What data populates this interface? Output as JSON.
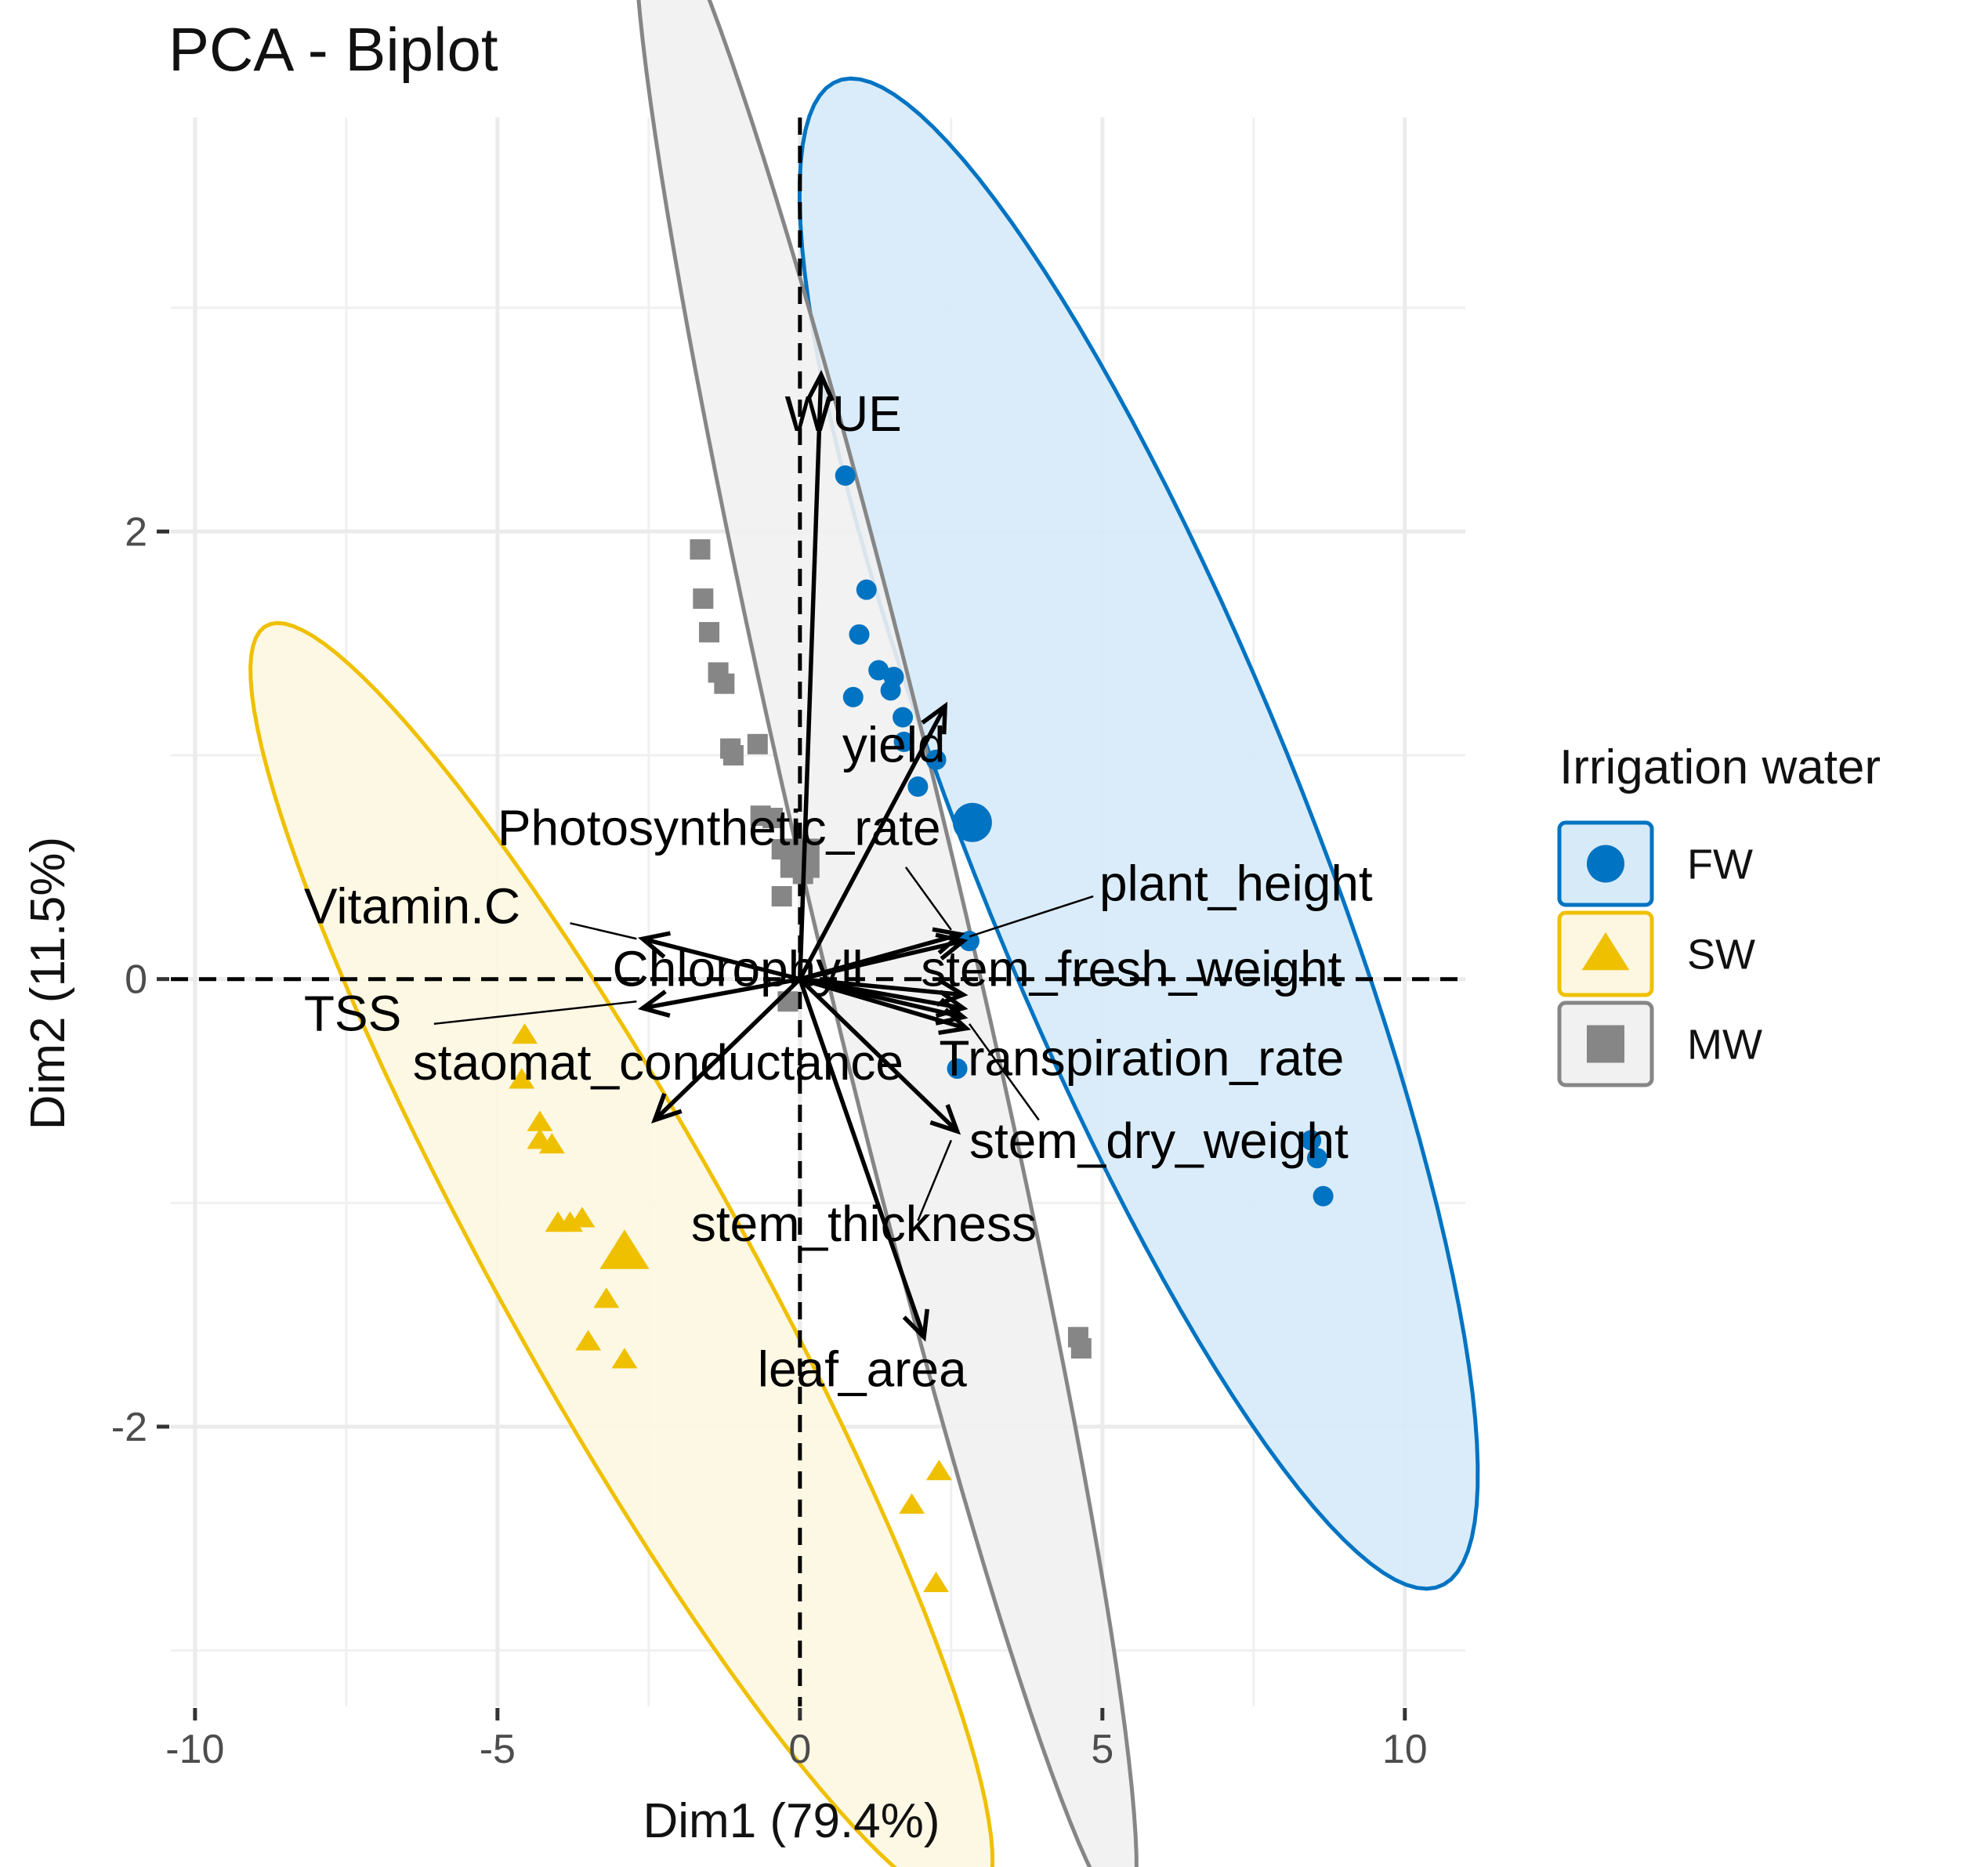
{
  "chart_data": {
    "type": "scatter",
    "title": "PCA - Biplot",
    "xlabel": "Dim1 (79.4%)",
    "ylabel": "Dim2 (11.5%)",
    "xlim": [
      -10.4,
      11.0
    ],
    "ylim": [
      -3.25,
      3.85
    ],
    "x_ticks": [
      -10,
      -5,
      0,
      5,
      10
    ],
    "x_tick_labels": [
      "-10",
      "-5",
      "0",
      "5",
      "10"
    ],
    "y_ticks": [
      -2,
      0,
      2
    ],
    "y_tick_labels": [
      "-2",
      "0",
      "2"
    ],
    "grid": true,
    "legend": {
      "title": "Irrigation water",
      "position": "right",
      "entries": [
        {
          "label": "FW",
          "color": "#0073C2",
          "shape": "circle"
        },
        {
          "label": "SW",
          "color": "#EFC000",
          "shape": "triangle"
        },
        {
          "label": "MW",
          "color": "#868686",
          "shape": "square"
        }
      ]
    },
    "series": [
      {
        "name": "FW",
        "color": "#0073C2",
        "fill": "#D6EAF8",
        "shape": "circle",
        "points": [
          [
            0.75,
            2.25
          ],
          [
            1.1,
            1.74
          ],
          [
            0.98,
            1.54
          ],
          [
            1.3,
            1.38
          ],
          [
            1.55,
            1.35
          ],
          [
            1.5,
            1.29
          ],
          [
            0.88,
            1.26
          ],
          [
            1.7,
            1.17
          ],
          [
            1.72,
            1.06
          ],
          [
            2.25,
            0.98
          ],
          [
            1.95,
            0.86
          ],
          [
            2.8,
            0.17
          ],
          [
            2.6,
            -0.4
          ],
          [
            8.45,
            -0.72
          ],
          [
            8.55,
            -0.8
          ],
          [
            8.65,
            -0.97
          ]
        ],
        "centroid": [
          2.85,
          0.7
        ],
        "ellipse": {
          "cx": 5.6,
          "cy": 0.65,
          "a": 6.35,
          "b": 1.58,
          "angle_deg": -29.0
        }
      },
      {
        "name": "SW",
        "color": "#EFC000",
        "fill": "#FDF7E1",
        "shape": "triangle",
        "points": [
          [
            -4.55,
            -0.25
          ],
          [
            -4.6,
            -0.45
          ],
          [
            -4.3,
            -0.64
          ],
          [
            -4.3,
            -0.72
          ],
          [
            -4.1,
            -0.74
          ],
          [
            -4.0,
            -1.09
          ],
          [
            -3.8,
            -1.09
          ],
          [
            -3.6,
            -1.07
          ],
          [
            -3.2,
            -1.43
          ],
          [
            -3.5,
            -1.62
          ],
          [
            -2.9,
            -1.7
          ],
          [
            1.85,
            -2.35
          ],
          [
            2.3,
            -2.2
          ],
          [
            2.25,
            -2.7
          ]
        ],
        "centroid": [
          -2.9,
          -1.22
        ],
        "ellipse": {
          "cx": -2.95,
          "cy": -1.28,
          "a": 6.7,
          "b": 0.99,
          "angle_deg": -24.0
        }
      },
      {
        "name": "MW",
        "color": "#868686",
        "fill": "#F1F1F1",
        "shape": "square",
        "points": [
          [
            -1.65,
            1.92
          ],
          [
            -1.6,
            1.7
          ],
          [
            -1.5,
            1.55
          ],
          [
            -1.35,
            1.37
          ],
          [
            -1.25,
            1.32
          ],
          [
            -1.15,
            1.03
          ],
          [
            -1.1,
            1.0
          ],
          [
            -0.7,
            1.05
          ],
          [
            -0.65,
            0.73
          ],
          [
            -0.45,
            0.72
          ],
          [
            -0.3,
            0.58
          ],
          [
            -0.15,
            0.52
          ],
          [
            0.05,
            0.47
          ],
          [
            -0.3,
            0.37
          ],
          [
            -0.2,
            -0.1
          ],
          [
            4.6,
            -1.6
          ],
          [
            4.65,
            -1.65
          ]
        ],
        "centroid": [
          0.0,
          0.54
        ],
        "ellipse": {
          "cx": 1.42,
          "cy": 0.35,
          "a": 6.07,
          "b": 0.95,
          "angle_deg": -47.7
        }
      }
    ],
    "loadings": [
      {
        "label": "WUE",
        "x": 0.35,
        "y": 2.7
      },
      {
        "label": "yield",
        "x": 2.4,
        "y": 1.22
      },
      {
        "label": "Photosynthetic_rate",
        "x": 2.7,
        "y": 0.17
      },
      {
        "label": "plant_height",
        "x": 2.65,
        "y": 0.2
      },
      {
        "label": "Vitamin.C",
        "x": -2.6,
        "y": 0.18
      },
      {
        "label": "Chlorophyll",
        "x": 2.7,
        "y": -0.07
      },
      {
        "label": "stem_fresh_weight",
        "x": 2.7,
        "y": -0.13
      },
      {
        "label": "TSS",
        "x": -2.6,
        "y": -0.13
      },
      {
        "label": "staomat_conductance",
        "x": -2.4,
        "y": -0.63
      },
      {
        "label": "Transpiration_rate",
        "x": 2.7,
        "y": -0.17
      },
      {
        "label": "stem_dry_weight",
        "x": 2.6,
        "y": -0.68
      },
      {
        "label": "stem_thickness",
        "x": 2.75,
        "y": -0.22
      },
      {
        "label": "leaf_area",
        "x": 2.05,
        "y": -1.6
      }
    ],
    "loading_labels": [
      {
        "label": "WUE",
        "x": -0.25,
        "y": 2.45,
        "anchor": "start",
        "leader": null
      },
      {
        "label": "yield",
        "x": 0.7,
        "y": 0.97,
        "anchor": "start",
        "leader": null
      },
      {
        "label": "Photosynthetic_rate",
        "x": -5.0,
        "y": 0.6,
        "anchor": "start",
        "leader": [
          1.75,
          0.5,
          2.5,
          0.22
        ]
      },
      {
        "label": "plant_height",
        "x": 4.95,
        "y": 0.35,
        "anchor": "start",
        "leader": [
          4.85,
          0.37,
          2.8,
          0.19
        ]
      },
      {
        "label": "Vitamin.C",
        "x": -8.2,
        "y": 0.25,
        "anchor": "start",
        "leader": [
          -3.8,
          0.25,
          -2.7,
          0.18
        ]
      },
      {
        "label": "Chlorophyll",
        "x": -3.1,
        "y": -0.03,
        "anchor": "start",
        "leader": null
      },
      {
        "label": "stem_fresh_weight",
        "x": 2.0,
        "y": -0.03,
        "anchor": "start",
        "leader": null
      },
      {
        "label": "TSS",
        "x": -8.2,
        "y": -0.23,
        "anchor": "start",
        "leader": [
          -6.05,
          -0.2,
          -2.7,
          -0.1
        ]
      },
      {
        "label": "staomat_conductance",
        "x": -6.4,
        "y": -0.45,
        "anchor": "start",
        "leader": null
      },
      {
        "label": "Transpiration_rate",
        "x": 2.3,
        "y": -0.43,
        "anchor": "start",
        "leader": [
          3.95,
          -0.63,
          2.8,
          -0.2
        ]
      },
      {
        "label": "stem_dry_weight",
        "x": 2.8,
        "y": -0.8,
        "anchor": "start",
        "leader": [
          2.6,
          -0.7,
          2.6,
          -0.7
        ]
      },
      {
        "label": "stem_thickness",
        "x": -1.8,
        "y": -1.17,
        "anchor": "start",
        "leader": [
          1.95,
          -1.08,
          2.5,
          -0.72
        ]
      },
      {
        "label": "leaf_area",
        "x": -0.7,
        "y": -1.82,
        "anchor": "start",
        "leader": null
      }
    ]
  }
}
